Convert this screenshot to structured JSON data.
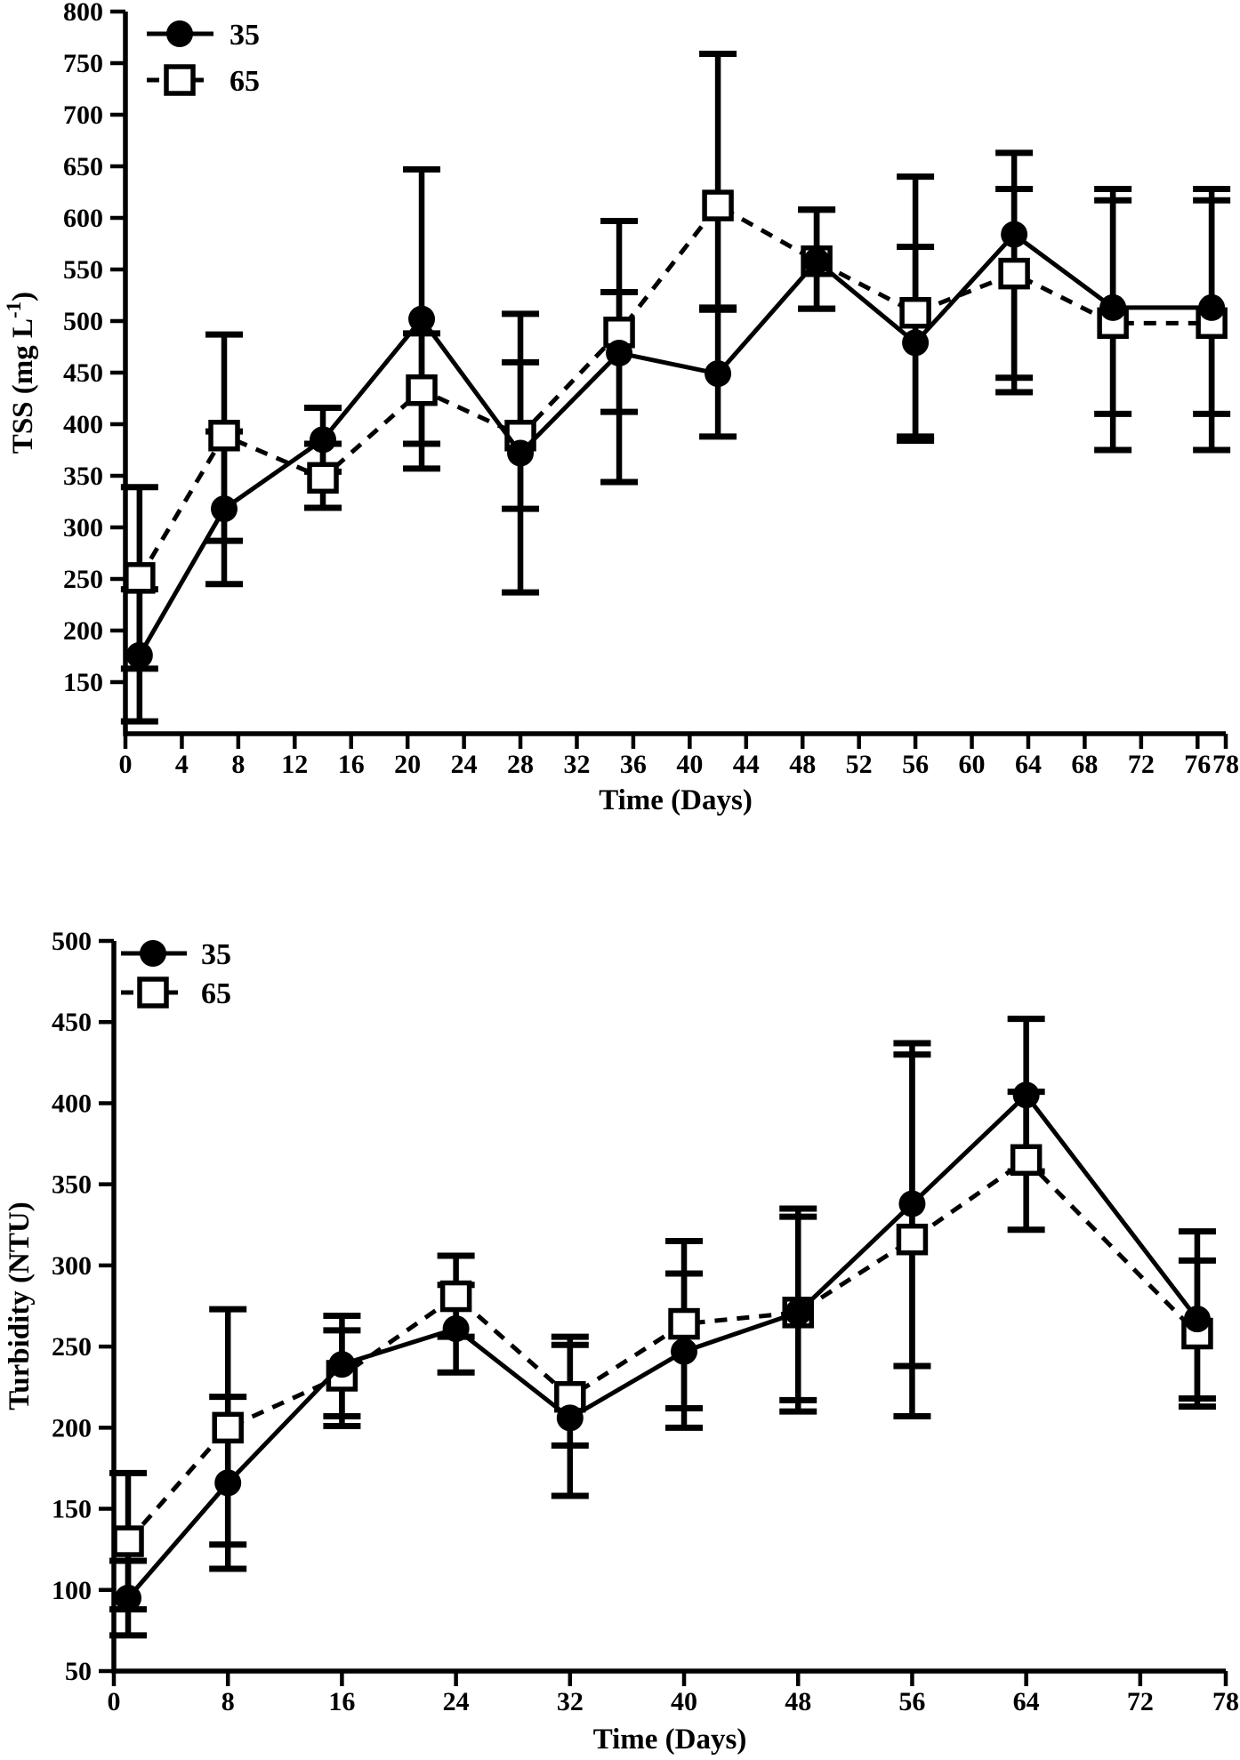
{
  "page": {
    "background": "#ffffff",
    "ink": "#000000"
  },
  "chart_data": [
    {
      "type": "line",
      "title": "",
      "xlabel": "Time (Days)",
      "ylabel": "TSS (mg L⁻¹)",
      "ylabel_main": "TSS (mg L",
      "ylabel_sup": "-1",
      "ylabel_close": ")",
      "xlim": [
        0,
        78
      ],
      "ylim": [
        100,
        800
      ],
      "xticks": [
        0,
        4,
        8,
        12,
        16,
        20,
        24,
        28,
        32,
        36,
        40,
        44,
        48,
        52,
        56,
        60,
        64,
        68,
        72,
        76,
        78
      ],
      "xtick_labels": [
        "0",
        "4",
        "8",
        "12",
        "16",
        "20",
        "24",
        "28",
        "32",
        "36",
        "40",
        "44",
        "48",
        "52",
        "56",
        "60",
        "64",
        "68",
        "72",
        "76",
        "78"
      ],
      "yticks": [
        150,
        200,
        250,
        300,
        350,
        400,
        450,
        500,
        550,
        600,
        650,
        700,
        750,
        800
      ],
      "ytick_labels": [
        "150",
        "200",
        "250",
        "300",
        "350",
        "400",
        "450",
        "500",
        "550",
        "600",
        "650",
        "700",
        "750",
        "800"
      ],
      "grid": false,
      "legend_position": "top-left-inside",
      "x": [
        1,
        7,
        14,
        21,
        28,
        35,
        42,
        49,
        56,
        63,
        70,
        77
      ],
      "series": [
        {
          "name": "35",
          "marker": "filled-circle",
          "line": "solid",
          "values": [
            176,
            318,
            385,
            502,
            372,
            469,
            449,
            558,
            479,
            584,
            513,
            513
          ],
          "err_lo": [
            112,
            245,
            354,
            357,
            237,
            412,
            388,
            512,
            388,
            431,
            410,
            410
          ],
          "err_hi": [
            240,
            393,
            416,
            647,
            507,
            528,
            513,
            608,
            572,
            663,
            628,
            628
          ]
        },
        {
          "name": "65",
          "marker": "open-square",
          "line": "dashed",
          "values": [
            251,
            389,
            348,
            433,
            389,
            489,
            612,
            558,
            508,
            546,
            498,
            498
          ],
          "err_lo": [
            163,
            287,
            319,
            381,
            318,
            344,
            511,
            512,
            384,
            445,
            375,
            375
          ],
          "err_hi": [
            339,
            487,
            381,
            488,
            460,
            597,
            759,
            608,
            640,
            628,
            617,
            617
          ]
        }
      ]
    },
    {
      "type": "line",
      "title": "",
      "xlabel": "Time (Days)",
      "ylabel": "Turbidity (NTU)",
      "ylabel_main": "Turbidity (NTU)",
      "ylabel_sup": "",
      "ylabel_close": "",
      "xlim": [
        0,
        78
      ],
      "ylim": [
        50,
        500
      ],
      "xticks": [
        0,
        8,
        16,
        24,
        32,
        40,
        48,
        56,
        64,
        72,
        78
      ],
      "xtick_labels": [
        "0",
        "8",
        "16",
        "24",
        "32",
        "40",
        "48",
        "56",
        "64",
        "72",
        "78"
      ],
      "yticks": [
        50,
        100,
        150,
        200,
        250,
        300,
        350,
        400,
        450,
        500
      ],
      "ytick_labels": [
        "50",
        "100",
        "150",
        "200",
        "250",
        "300",
        "350",
        "400",
        "450",
        "500"
      ],
      "grid": false,
      "legend_position": "top-left-inside",
      "x": [
        1,
        8,
        16,
        24,
        32,
        40,
        48,
        56,
        64,
        76
      ],
      "series": [
        {
          "name": "35",
          "marker": "filled-circle",
          "line": "solid",
          "values": [
            95,
            166,
            239,
            261,
            206,
            247,
            271,
            338,
            405,
            267
          ],
          "err_lo": [
            72,
            113,
            207,
            234,
            158,
            200,
            217,
            207,
            358,
            218
          ],
          "err_hi": [
            118,
            219,
            269,
            288,
            251,
            295,
            330,
            437,
            452,
            321
          ]
        },
        {
          "name": "65",
          "marker": "open-square",
          "line": "dashed",
          "values": [
            130,
            200,
            232,
            281,
            219,
            264,
            271,
            316,
            365,
            258
          ],
          "err_lo": [
            88,
            128,
            201,
            256,
            189,
            212,
            210,
            238,
            322,
            213
          ],
          "err_hi": [
            172,
            273,
            260,
            306,
            256,
            315,
            335,
            430,
            407,
            303
          ]
        }
      ]
    }
  ]
}
